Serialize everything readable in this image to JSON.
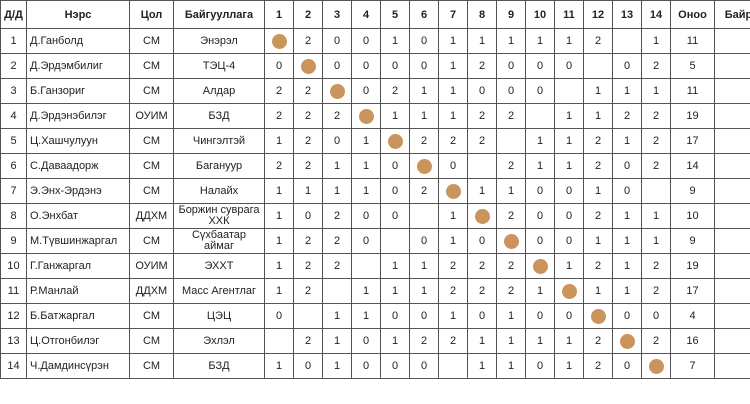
{
  "columns": [
    "Д/Д",
    "Нэрс",
    "Цол",
    "Байгууллага",
    "1",
    "2",
    "3",
    "4",
    "5",
    "6",
    "7",
    "8",
    "9",
    "10",
    "11",
    "12",
    "13",
    "14",
    "Оноо",
    "Байр"
  ],
  "diagonal_marker_color": "#c9955c",
  "rows": [
    {
      "num": "1",
      "name": "Д.Ганболд",
      "rank": "СМ",
      "org": "Энэрэл",
      "scores": [
        "●",
        "2",
        "0",
        "0",
        "1",
        "0",
        "1",
        "1",
        "1",
        "1",
        "1",
        "2",
        "",
        "1"
      ],
      "total": "11",
      "place": ""
    },
    {
      "num": "2",
      "name": "Д.Эрдэмбилиг",
      "rank": "СМ",
      "org": "ТЭЦ-4",
      "scores": [
        "0",
        "●",
        "0",
        "0",
        "0",
        "0",
        "1",
        "2",
        "0",
        "0",
        "0",
        "",
        "0",
        "2"
      ],
      "total": "5",
      "place": ""
    },
    {
      "num": "3",
      "name": "Б.Ганзориг",
      "rank": "СМ",
      "org": "Алдар",
      "scores": [
        "2",
        "2",
        "●",
        "0",
        "2",
        "1",
        "1",
        "0",
        "0",
        "0",
        "",
        "1",
        "1",
        "1"
      ],
      "total": "11",
      "place": ""
    },
    {
      "num": "4",
      "name": "Д.Эрдэнэбилэг",
      "rank": "ОУИМ",
      "org": "БЗД",
      "scores": [
        "2",
        "2",
        "2",
        "●",
        "1",
        "1",
        "1",
        "2",
        "2",
        "",
        "1",
        "1",
        "2",
        "2"
      ],
      "total": "19",
      "place": ""
    },
    {
      "num": "5",
      "name": "Ц.Хашчулуун",
      "rank": "СМ",
      "org": "Чингэлтэй",
      "scores": [
        "1",
        "2",
        "0",
        "1",
        "●",
        "2",
        "2",
        "2",
        "",
        "1",
        "1",
        "2",
        "1",
        "2"
      ],
      "total": "17",
      "place": ""
    },
    {
      "num": "6",
      "name": "С.Даваадорж",
      "rank": "СМ",
      "org": "Багануур",
      "scores": [
        "2",
        "2",
        "1",
        "1",
        "0",
        "●",
        "0",
        "",
        "2",
        "1",
        "1",
        "2",
        "0",
        "2"
      ],
      "total": "14",
      "place": ""
    },
    {
      "num": "7",
      "name": "Э.Энх-Эрдэнэ",
      "rank": "СМ",
      "org": "Налайх",
      "scores": [
        "1",
        "1",
        "1",
        "1",
        "0",
        "2",
        "●",
        "1",
        "1",
        "0",
        "0",
        "1",
        "0",
        ""
      ],
      "total": "9",
      "place": ""
    },
    {
      "num": "8",
      "name": "О.Энхбат",
      "rank": "ДДХМ",
      "org": "Боржин суврага ХХК",
      "scores": [
        "1",
        "0",
        "2",
        "0",
        "0",
        "",
        "1",
        "●",
        "2",
        "0",
        "0",
        "2",
        "1",
        "1"
      ],
      "total": "10",
      "place": ""
    },
    {
      "num": "9",
      "name": "М.Түвшинжаргал",
      "rank": "СМ",
      "org": "Сүхбаатар аймаг",
      "scores": [
        "1",
        "2",
        "2",
        "0",
        "",
        "0",
        "1",
        "0",
        "●",
        "0",
        "0",
        "1",
        "1",
        "1"
      ],
      "total": "9",
      "place": ""
    },
    {
      "num": "10",
      "name": "Г.Ганжаргал",
      "rank": "ОУИМ",
      "org": "ЭХХТ",
      "scores": [
        "1",
        "2",
        "2",
        "",
        "1",
        "1",
        "2",
        "2",
        "2",
        "●",
        "1",
        "2",
        "1",
        "2"
      ],
      "total": "19",
      "place": ""
    },
    {
      "num": "11",
      "name": "Р.Манлай",
      "rank": "ДДХМ",
      "org": "Масс Агентлаг",
      "scores": [
        "1",
        "2",
        "",
        "1",
        "1",
        "1",
        "2",
        "2",
        "2",
        "1",
        "●",
        "1",
        "1",
        "2"
      ],
      "total": "17",
      "place": ""
    },
    {
      "num": "12",
      "name": "Б.Батжаргал",
      "rank": "СМ",
      "org": "ЦЭЦ",
      "scores": [
        "0",
        "",
        "1",
        "1",
        "0",
        "0",
        "1",
        "0",
        "1",
        "0",
        "0",
        "●",
        "0",
        "0"
      ],
      "total": "4",
      "place": ""
    },
    {
      "num": "13",
      "name": "Ц.Отгонбилэг",
      "rank": "СМ",
      "org": "Эхлэл",
      "scores": [
        "",
        "2",
        "1",
        "0",
        "1",
        "2",
        "2",
        "1",
        "1",
        "1",
        "1",
        "2",
        "●",
        "2"
      ],
      "total": "16",
      "place": ""
    },
    {
      "num": "14",
      "name": "Ч.Дамдинсүрэн",
      "rank": "СМ",
      "org": "БЗД",
      "scores": [
        "1",
        "0",
        "1",
        "0",
        "0",
        "0",
        "",
        "1",
        "1",
        "0",
        "1",
        "2",
        "0",
        "●"
      ],
      "total": "7",
      "place": ""
    }
  ]
}
